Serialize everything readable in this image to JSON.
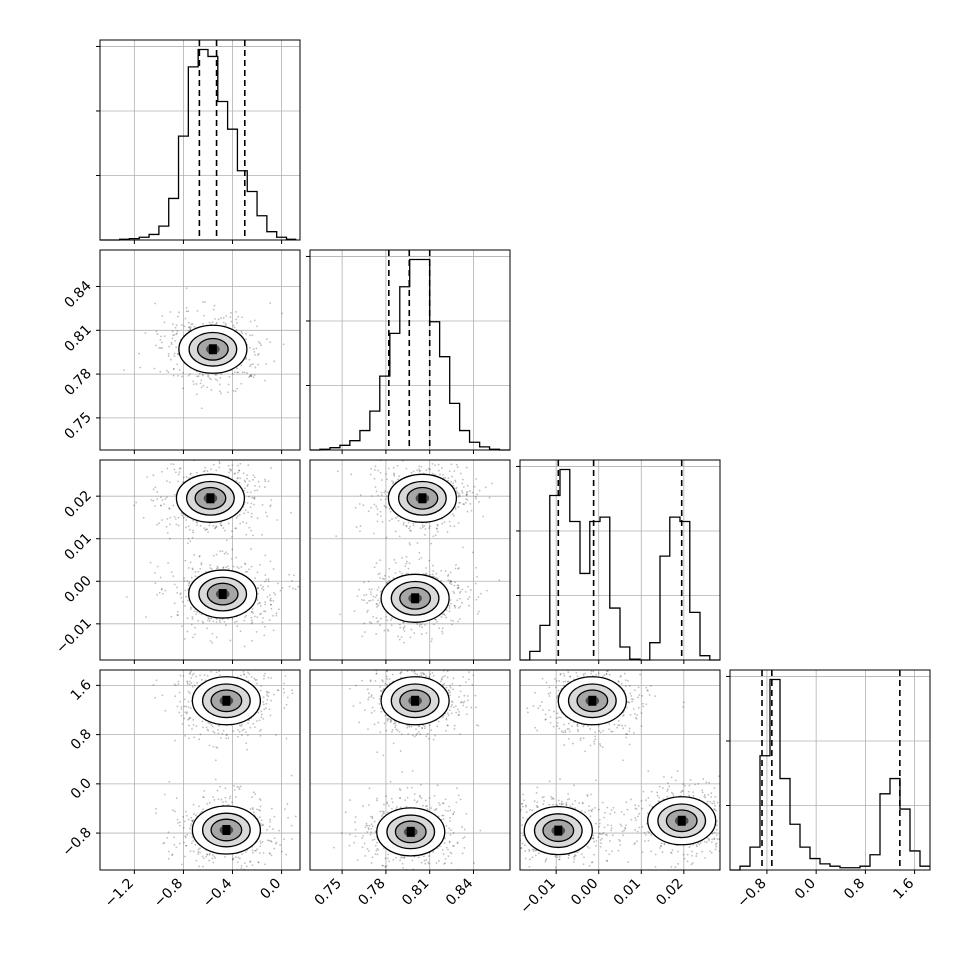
{
  "chart_data": {
    "type": "corner",
    "grid": true,
    "parameters": [
      {
        "range": [
          -1.48,
          0.15
        ],
        "ticks": [
          -1.2,
          -0.8,
          -0.4,
          0.0
        ],
        "tick_labels": [
          "−1.2",
          "−0.8",
          "−0.4",
          "0.0"
        ]
      },
      {
        "range": [
          0.728,
          0.865
        ],
        "ticks": [
          0.75,
          0.78,
          0.81,
          0.84
        ],
        "tick_labels": [
          "0.75",
          "0.78",
          "0.81",
          "0.84"
        ]
      },
      {
        "range": [
          -0.0185,
          0.0285
        ],
        "ticks": [
          -0.01,
          0.0,
          0.01,
          0.02
        ],
        "tick_labels": [
          "−0.01",
          "0.00",
          "0.01",
          "0.02"
        ]
      },
      {
        "range": [
          -1.4,
          1.85
        ],
        "ticks": [
          -0.8,
          0.0,
          0.8,
          1.6
        ],
        "tick_labels": [
          "−0.8",
          "0.0",
          "0.8",
          "1.6"
        ]
      }
    ],
    "histograms": [
      {
        "parameter": 0,
        "bins": [
          -1.48,
          -1.4,
          -1.32,
          -1.24,
          -1.16,
          -1.08,
          -1.0,
          -0.92,
          -0.84,
          -0.76,
          -0.68,
          -0.6,
          -0.52,
          -0.44,
          -0.36,
          -0.28,
          -0.2,
          -0.12,
          -0.04,
          0.04,
          0.12
        ],
        "counts": [
          0,
          0,
          1,
          2,
          4,
          8,
          20,
          60,
          150,
          250,
          275,
          265,
          200,
          160,
          100,
          70,
          35,
          12,
          4,
          1
        ],
        "quantiles": [
          -0.67,
          -0.53,
          -0.3
        ]
      },
      {
        "parameter": 1,
        "bins": [
          0.728,
          0.7348,
          0.7417,
          0.7485,
          0.7553,
          0.7622,
          0.769,
          0.7758,
          0.7827,
          0.7895,
          0.7963,
          0.8032,
          0.81,
          0.8168,
          0.8237,
          0.8305,
          0.8373,
          0.8442,
          0.851,
          0.8578,
          0.865
        ],
        "counts": [
          0,
          1,
          3,
          6,
          12,
          25,
          50,
          95,
          150,
          210,
          245,
          245,
          165,
          120,
          60,
          25,
          10,
          4,
          1,
          0
        ],
        "quantiles": [
          0.782,
          0.796,
          0.81
        ]
      },
      {
        "parameter": 2,
        "bins": [
          -0.0185,
          -0.0162,
          -0.0138,
          -0.0115,
          -0.0091,
          -0.0068,
          -0.0044,
          -0.0021,
          0.0003,
          0.0026,
          0.005,
          0.0073,
          0.0097,
          0.012,
          0.0144,
          0.0167,
          0.0191,
          0.0214,
          0.0238,
          0.0261,
          0.0285
        ],
        "counts": [
          0,
          10,
          40,
          190,
          220,
          160,
          100,
          160,
          165,
          60,
          15,
          1,
          0,
          20,
          120,
          165,
          160,
          55,
          5,
          0
        ],
        "quantiles": [
          -0.0095,
          -0.0012,
          0.0195
        ]
      },
      {
        "parameter": 3,
        "bins": [
          -1.4,
          -1.2375,
          -1.075,
          -0.9125,
          -0.75,
          -0.5875,
          -0.425,
          -0.2625,
          -0.1,
          0.0625,
          0.225,
          0.3875,
          0.55,
          0.7125,
          0.875,
          1.0375,
          1.2,
          1.3625,
          1.525,
          1.6875,
          1.85
        ],
        "counts": [
          0,
          5,
          30,
          150,
          250,
          120,
          60,
          30,
          15,
          8,
          5,
          3,
          3,
          5,
          20,
          100,
          120,
          80,
          25,
          5
        ],
        "quantiles": [
          -0.88,
          -0.72,
          1.36
        ]
      }
    ],
    "density_panels": [
      {
        "x_param": 0,
        "y_param": 1,
        "modes": [
          {
            "x": -0.56,
            "y": 0.797
          }
        ]
      },
      {
        "x_param": 0,
        "y_param": 2,
        "modes": [
          {
            "x": -0.58,
            "y": 0.0195
          },
          {
            "x": -0.48,
            "y": -0.003
          }
        ]
      },
      {
        "x_param": 1,
        "y_param": 2,
        "modes": [
          {
            "x": 0.805,
            "y": 0.0195
          },
          {
            "x": 0.8,
            "y": -0.004
          }
        ]
      },
      {
        "x_param": 0,
        "y_param": 3,
        "modes": [
          {
            "x": -0.45,
            "y": 1.35
          },
          {
            "x": -0.45,
            "y": -0.75
          }
        ]
      },
      {
        "x_param": 1,
        "y_param": 3,
        "modes": [
          {
            "x": 0.8,
            "y": 1.35
          },
          {
            "x": 0.797,
            "y": -0.78
          }
        ]
      },
      {
        "x_param": 2,
        "y_param": 3,
        "modes": [
          {
            "x": -0.0015,
            "y": 1.35
          },
          {
            "x": -0.0095,
            "y": -0.76
          },
          {
            "x": 0.0195,
            "y": -0.6
          }
        ]
      }
    ]
  }
}
